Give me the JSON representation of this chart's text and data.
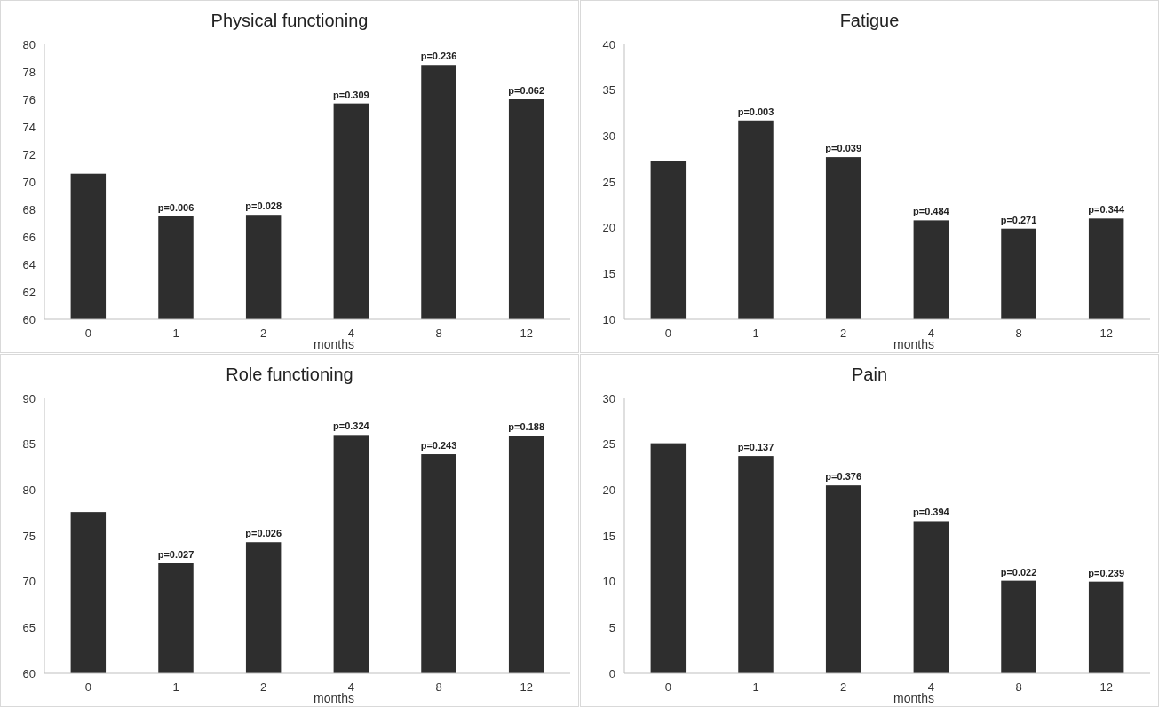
{
  "chart_data": [
    {
      "type": "bar",
      "title": "Physical functioning",
      "xlabel": "months",
      "categories": [
        "0",
        "1",
        "2",
        "4",
        "8",
        "12"
      ],
      "values": [
        70.6,
        67.5,
        67.6,
        75.7,
        78.5,
        76.0
      ],
      "color": "#2e2e2e",
      "ylim": [
        60,
        80
      ],
      "yticks": [
        60,
        62,
        64,
        66,
        68,
        70,
        72,
        74,
        76,
        78,
        80
      ],
      "grid": false,
      "annotations": [
        {
          "text": "p=0.006",
          "x": "1",
          "y": 67.5
        },
        {
          "text": "p=0.028",
          "x": "2",
          "y": 67.6
        },
        {
          "text": "p=0.309",
          "x": "4",
          "y": 75.7
        },
        {
          "text": "p=0.236",
          "x": "8",
          "y": 78.5
        },
        {
          "text": "p=0.062",
          "x": "12",
          "y": 76.0
        }
      ]
    },
    {
      "type": "bar",
      "title": "Fatigue",
      "xlabel": "months",
      "categories": [
        "0",
        "1",
        "2",
        "4",
        "8",
        "12"
      ],
      "values": [
        27.3,
        31.7,
        27.7,
        20.8,
        19.9,
        21.0
      ],
      "color": "#2e2e2e",
      "ylim": [
        10,
        40
      ],
      "yticks": [
        10,
        15,
        20,
        25,
        30,
        35,
        40
      ],
      "grid": false,
      "annotations": [
        {
          "text": "p=0.003",
          "x": "1",
          "y": 31.7
        },
        {
          "text": "p=0.039",
          "x": "2",
          "y": 27.7
        },
        {
          "text": "p=0.484",
          "x": "4",
          "y": 20.8
        },
        {
          "text": "p=0.271",
          "x": "8",
          "y": 19.9
        },
        {
          "text": "p=0.344",
          "x": "12",
          "y": 21.0
        }
      ]
    },
    {
      "type": "bar",
      "title": "Role functioning",
      "xlabel": "months",
      "categories": [
        "0",
        "1",
        "2",
        "4",
        "8",
        "12"
      ],
      "values": [
        77.6,
        72.0,
        74.3,
        86.0,
        83.9,
        85.9
      ],
      "color": "#2e2e2e",
      "ylim": [
        60,
        90
      ],
      "yticks": [
        60,
        65,
        70,
        75,
        80,
        85,
        90
      ],
      "grid": false,
      "annotations": [
        {
          "text": "p=0.027",
          "x": "1",
          "y": 72.0
        },
        {
          "text": "p=0.026",
          "x": "2",
          "y": 74.3
        },
        {
          "text": "p=0.324",
          "x": "4",
          "y": 86.0
        },
        {
          "text": "p=0.243",
          "x": "8",
          "y": 83.9
        },
        {
          "text": "p=0.188",
          "x": "12",
          "y": 85.9
        }
      ]
    },
    {
      "type": "bar",
      "title": "Pain",
      "xlabel": "months",
      "categories": [
        "0",
        "1",
        "2",
        "4",
        "8",
        "12"
      ],
      "values": [
        25.1,
        23.7,
        20.5,
        16.6,
        10.1,
        10.0
      ],
      "color": "#2e2e2e",
      "ylim": [
        0,
        30
      ],
      "yticks": [
        0,
        5,
        10,
        15,
        20,
        25,
        30
      ],
      "grid": false,
      "annotations": [
        {
          "text": "p=0.137",
          "x": "1",
          "y": 23.7
        },
        {
          "text": "p=0.376",
          "x": "2",
          "y": 20.5
        },
        {
          "text": "p=0.394",
          "x": "4",
          "y": 16.6
        },
        {
          "text": "p=0.022",
          "x": "8",
          "y": 10.1
        },
        {
          "text": "p=0.239",
          "x": "12",
          "y": 10.0
        }
      ]
    }
  ]
}
